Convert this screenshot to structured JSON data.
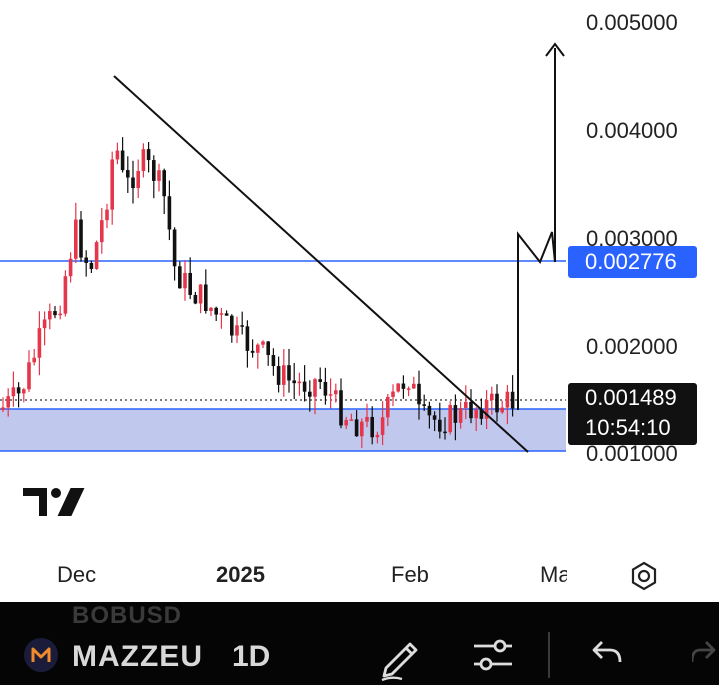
{
  "chart": {
    "price_axis": [
      "0.005000",
      "0.004000",
      "0.003000",
      "0.002000",
      "0.001000"
    ],
    "highlight_price": "0.002776",
    "current_price": "0.001489",
    "countdown": "10:54:10",
    "time_axis": [
      "Dec",
      "2025",
      "Feb",
      "Ma"
    ],
    "colors": {
      "up": "#e5374c",
      "down": "#111111",
      "line": "#2962ff",
      "zone": "#c0c8ee"
    }
  },
  "bottom_bar": {
    "ghost_symbol": "BOBUSD",
    "symbol": "MAZZEU",
    "interval": "1D"
  },
  "icons": [
    "tradingview-logo",
    "settings-icon",
    "mazze-logo",
    "pencil-icon",
    "sliders-icon",
    "undo-icon",
    "redo-icon"
  ]
}
